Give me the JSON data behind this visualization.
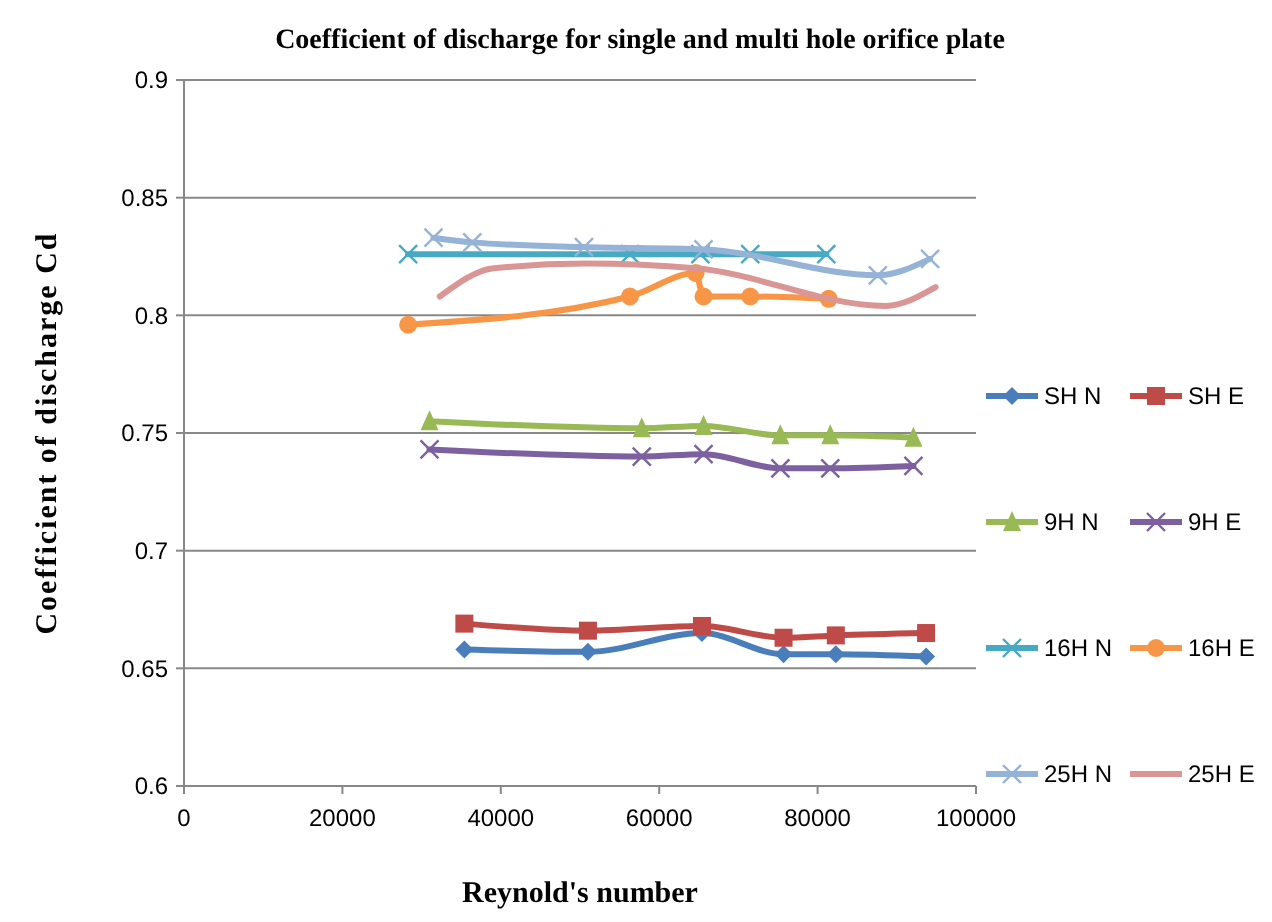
{
  "chart_data": {
    "type": "line",
    "title": "Coefficient of discharge for single and multi hole orifice plate",
    "xlabel": "Reynold's number",
    "ylabel": "Coefficient of discharge Cd",
    "xlim": [
      0,
      100000
    ],
    "xticks": [
      0,
      20000,
      40000,
      60000,
      80000,
      100000
    ],
    "ylim": [
      0.6,
      0.9
    ],
    "yticks": [
      0.6,
      0.65,
      0.7,
      0.75,
      0.8,
      0.85,
      0.9
    ],
    "grid": "y",
    "legend": "right",
    "line_style": "solid",
    "series": [
      {
        "name": "SH N",
        "color": "#4a7ebb",
        "marker": "diamond",
        "x": [
          35400,
          51000,
          65400,
          75700,
          82300,
          93700
        ],
        "values": [
          0.658,
          0.657,
          0.665,
          0.656,
          0.656,
          0.655
        ]
      },
      {
        "name": "SH E",
        "color": "#be4b48",
        "marker": "square",
        "x": [
          35400,
          51000,
          65400,
          75700,
          82300,
          93700
        ],
        "values": [
          0.669,
          0.666,
          0.668,
          0.663,
          0.664,
          0.665
        ]
      },
      {
        "name": "9H N",
        "color": "#98b954",
        "marker": "triangle",
        "x": [
          31000,
          57800,
          65600,
          75300,
          81600,
          92100
        ],
        "values": [
          0.755,
          0.752,
          0.753,
          0.749,
          0.749,
          0.748
        ]
      },
      {
        "name": "9H E",
        "color": "#7d60a0",
        "marker": "cross",
        "x": [
          31000,
          57800,
          65600,
          75300,
          81600,
          92100
        ],
        "values": [
          0.743,
          0.74,
          0.741,
          0.735,
          0.735,
          0.736
        ]
      },
      {
        "name": "16H N",
        "color": "#46aac5",
        "marker": "cross",
        "x": [
          28300,
          56300,
          65200,
          71500,
          81100
        ],
        "values": [
          0.826,
          0.826,
          0.826,
          0.826,
          0.826
        ]
      },
      {
        "name": "16H E",
        "color": "#f79646",
        "marker": "circle",
        "x": [
          28300,
          56300,
          64600,
          65600,
          71500,
          81400
        ],
        "values": [
          0.796,
          0.808,
          0.818,
          0.808,
          0.808,
          0.807
        ]
      },
      {
        "name": "25H N",
        "color": "#95b3d7",
        "marker": "cross",
        "x": [
          31500,
          36400,
          50500,
          65600,
          87600,
          94200
        ],
        "values": [
          0.833,
          0.831,
          0.829,
          0.828,
          0.817,
          0.824
        ]
      },
      {
        "name": "25H E",
        "color": "#d99694",
        "marker": "none",
        "x": [
          32300,
          39100,
          50800,
          64600,
          88600,
          94900
        ],
        "values": [
          0.808,
          0.82,
          0.822,
          0.82,
          0.804,
          0.812
        ]
      }
    ]
  }
}
